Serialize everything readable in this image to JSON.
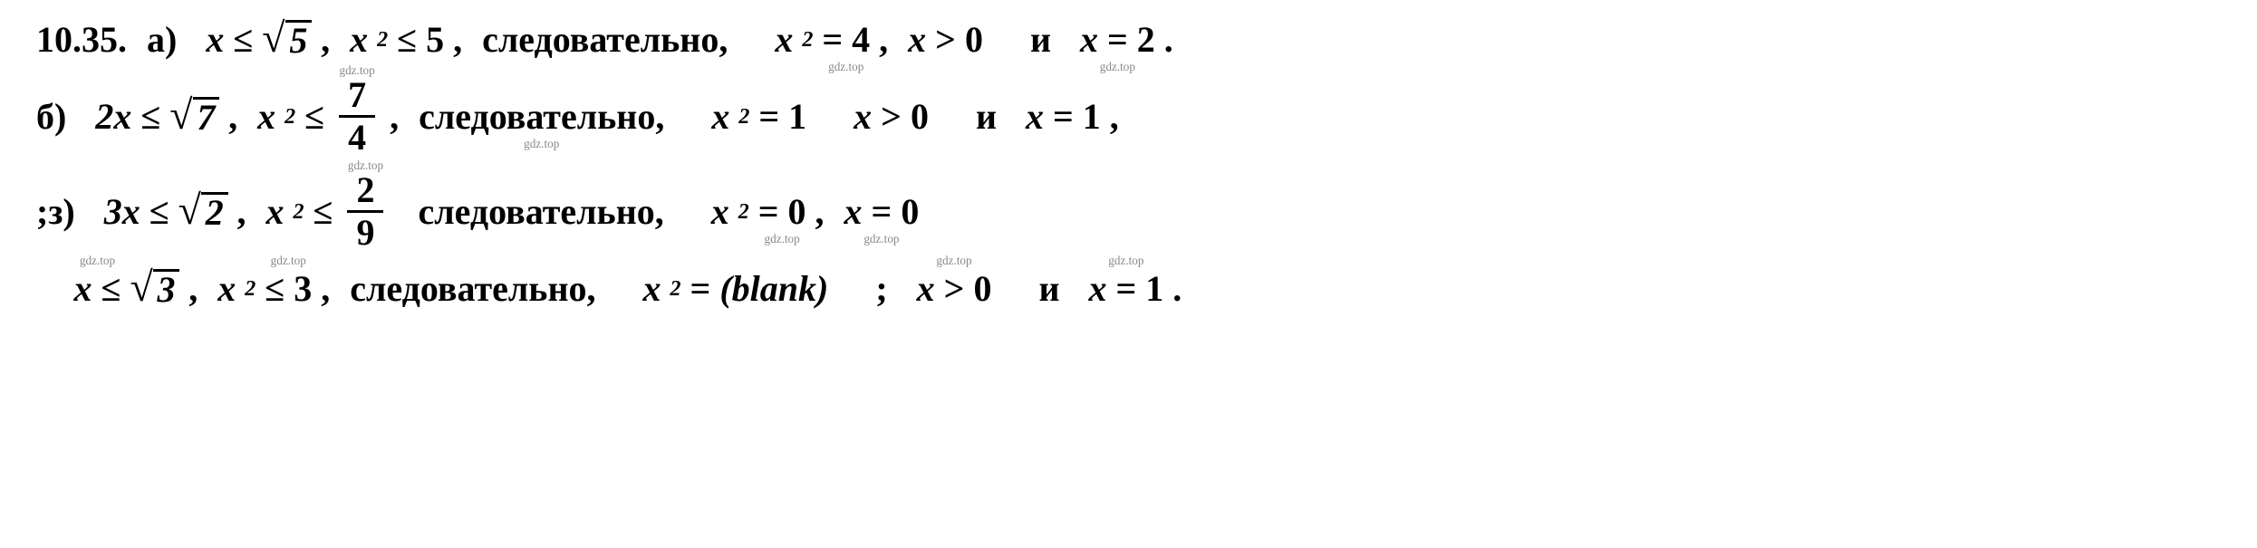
{
  "watermark": "gdz.top",
  "problem_number": "10.35.",
  "colors": {
    "text": "#000000",
    "background": "#ffffff",
    "watermark": "#888888"
  },
  "fontsize_pt": 40,
  "lines": {
    "a": {
      "label": "а)",
      "ineq1_lhs": "x",
      "ineq1_op": "≤",
      "ineq1_rad": "5",
      "ineq2_lhs": "x",
      "ineq2_exp": "2",
      "ineq2_op": "≤",
      "ineq2_rhs": "5",
      "word": "следовательно,",
      "eq1_lhs": "x",
      "eq1_exp": "2",
      "eq1_op": "=",
      "eq1_rhs": "4",
      "ineq3_lhs": "x",
      "ineq3_op": ">",
      "ineq3_rhs": "0",
      "conj": "и",
      "eq2_lhs": "x",
      "eq2_op": "=",
      "eq2_rhs": "2"
    },
    "b": {
      "label": "б)",
      "ineq1_lhs": "2x",
      "ineq1_op": "≤",
      "ineq1_rad": "7",
      "ineq2_lhs": "x",
      "ineq2_exp": "2",
      "ineq2_op": "≤",
      "frac_num": "7",
      "frac_den": "4",
      "word": "следовательно,",
      "eq1_lhs": "x",
      "eq1_exp": "2",
      "eq1_op": "=",
      "eq1_rhs": "1",
      "ineq3_lhs": "x",
      "ineq3_op": ">",
      "ineq3_rhs": "0",
      "conj": "и",
      "eq2_lhs": "x",
      "eq2_op": "=",
      "eq2_rhs": "1"
    },
    "c": {
      "label": ";з)",
      "ineq1_lhs": "3x",
      "ineq1_op": "≤",
      "ineq1_rad": "2",
      "ineq2_lhs": "x",
      "ineq2_exp": "2",
      "ineq2_op": "≤",
      "frac_num": "2",
      "frac_den": "9",
      "word": "следовательно,",
      "eq1_lhs": "x",
      "eq1_exp": "2",
      "eq1_op": "=",
      "eq1_rhs": "0",
      "eq2_lhs": "x",
      "eq2_op": "=",
      "eq2_rhs": "0"
    },
    "d": {
      "ineq1_lhs": "x",
      "ineq1_op": "≤",
      "ineq1_rad": "3",
      "ineq2_lhs": "x",
      "ineq2_exp": "2",
      "ineq2_op": "≤",
      "ineq2_rhs": "3",
      "word": "следовательно,",
      "eq1_lhs": "x",
      "eq1_exp": "2",
      "eq1_op": "=",
      "ineq3_lhs": "x",
      "ineq3_op": ">",
      "ineq3_rhs": "0",
      "conj": "и",
      "eq2_lhs": "x",
      "eq2_op": "=",
      "eq2_rhs": "1"
    }
  }
}
